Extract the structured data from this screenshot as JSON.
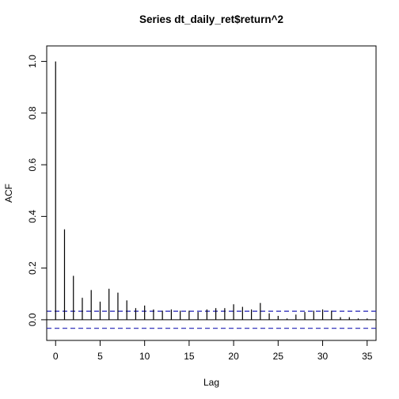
{
  "chart_data": {
    "type": "bar",
    "title": "Series  dt_daily_ret$return^2",
    "xlabel": "Lag",
    "ylabel": "ACF",
    "xlim": [
      -1,
      36
    ],
    "ylim": [
      -0.08,
      1.06
    ],
    "xticks": [
      0,
      5,
      10,
      15,
      20,
      25,
      30,
      35
    ],
    "yticks": [
      0.0,
      0.2,
      0.4,
      0.6,
      0.8,
      1.0
    ],
    "ytick_labels": [
      "0.0",
      "0.2",
      "0.4",
      "0.6",
      "0.8",
      "1.0"
    ],
    "lags": [
      0,
      1,
      2,
      3,
      4,
      5,
      6,
      7,
      8,
      9,
      10,
      11,
      12,
      13,
      14,
      15,
      16,
      17,
      18,
      19,
      20,
      21,
      22,
      23,
      24,
      25,
      26,
      27,
      28,
      29,
      30,
      31,
      32,
      33,
      34,
      35
    ],
    "acf": [
      1.0,
      0.35,
      0.17,
      0.085,
      0.115,
      0.07,
      0.12,
      0.105,
      0.075,
      0.045,
      0.055,
      0.04,
      0.035,
      0.04,
      0.035,
      0.035,
      0.03,
      0.04,
      0.045,
      0.045,
      0.06,
      0.05,
      0.04,
      0.065,
      0.025,
      0.015,
      0.005,
      0.02,
      0.03,
      0.035,
      0.04,
      0.035,
      0.01,
      0.01,
      0.005,
      0.005
    ],
    "confidence_bound": 0.033,
    "colors": {
      "bars": "#000000",
      "confidence_lines": "#1f1fb4",
      "axes": "#000000"
    }
  }
}
